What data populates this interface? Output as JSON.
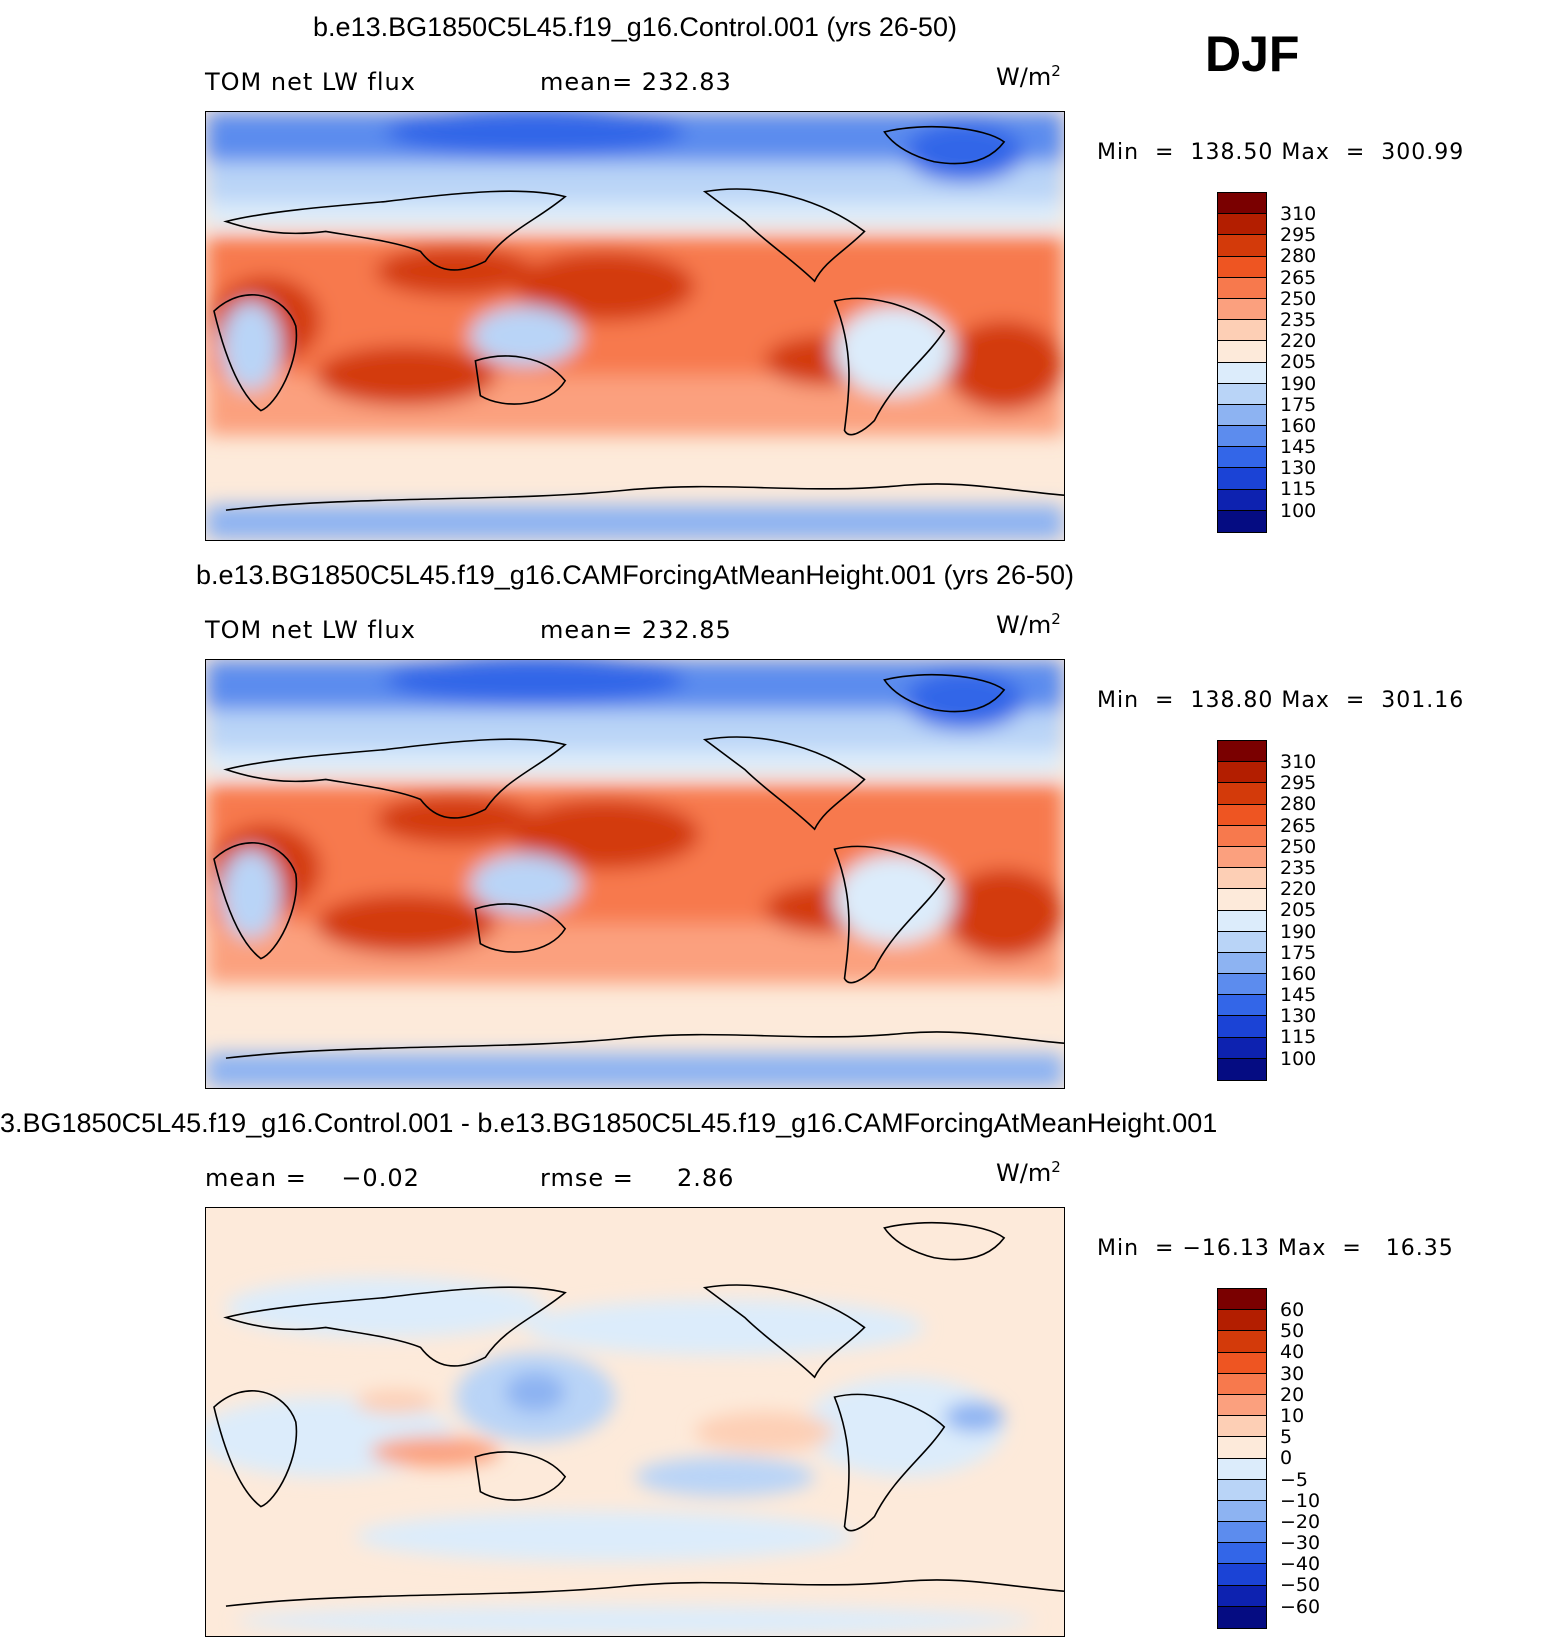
{
  "season": "DJF",
  "panels": [
    {
      "title": "b.e13.BG1850C5L45.f19_g16.Control.001 (yrs 26-50)",
      "left_label": "TOM net LW flux",
      "stat_label": "mean= 232.83",
      "units": "W/m",
      "units_sup": "2",
      "minmax": "Min  =  138.50 Max  =  300.99"
    },
    {
      "title": "b.e13.BG1850C5L45.f19_g16.CAMForcingAtMeanHeight.001 (yrs 26-50)",
      "left_label": "TOM net LW flux",
      "stat_label": "mean= 232.85",
      "units": "W/m",
      "units_sup": "2",
      "minmax": "Min  =  138.80 Max  =  301.16"
    },
    {
      "title": "3.BG1850C5L45.f19_g16.Control.001 - b.e13.BG1850C5L45.f19_g16.CAMForcingAtMeanHeight.001",
      "left_label": "mean =    −0.02",
      "stat_label": "rmse =     2.86",
      "units": "W/m",
      "units_sup": "2",
      "minmax": "Min  = −16.13 Max  =   16.35"
    }
  ],
  "colorbars": {
    "abs_labels": [
      "310",
      "295",
      "280",
      "265",
      "250",
      "235",
      "220",
      "205",
      "190",
      "175",
      "160",
      "145",
      "130",
      "115",
      "100"
    ],
    "diff_labels": [
      "60",
      "50",
      "40",
      "30",
      "20",
      "10",
      "5",
      "0",
      "−5",
      "−10",
      "−20",
      "−30",
      "−40",
      "−50",
      "−60"
    ],
    "colors": [
      "#7a0000",
      "#b31e00",
      "#d33a0a",
      "#ee5522",
      "#f7794d",
      "#fba07e",
      "#fdcfb5",
      "#fdeada",
      "#dcecfb",
      "#b9d4f7",
      "#8db3f2",
      "#5c8cee",
      "#3366e8",
      "#1b43d6",
      "#0d22b0",
      "#050c82"
    ]
  }
}
